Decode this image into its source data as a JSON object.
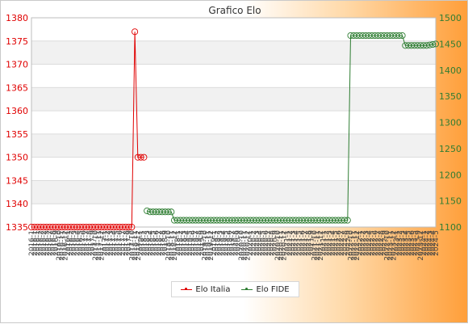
{
  "chart_data": {
    "type": "line",
    "title": "Grafico Elo",
    "left_axis": {
      "ticks": [
        1335,
        1340,
        1345,
        1350,
        1355,
        1360,
        1365,
        1370,
        1375,
        1380
      ],
      "range": [
        1335,
        1380
      ],
      "color": "#e00000"
    },
    "right_axis": {
      "ticks": [
        1100,
        1150,
        1200,
        1250,
        1300,
        1350,
        1400,
        1450,
        1500
      ],
      "range": [
        1100,
        1500
      ],
      "color": "#2e7d32"
    },
    "grid": "horizontal bands",
    "legend_placement": "bottom-center",
    "series": [
      {
        "name": "Elo Italia",
        "axis": "left",
        "color": "#e00000",
        "points": [
          {
            "i": 0,
            "v": 1335
          },
          {
            "i": 1,
            "v": 1335
          },
          {
            "i": 2,
            "v": 1335
          },
          {
            "i": 3,
            "v": 1335
          },
          {
            "i": 4,
            "v": 1335
          },
          {
            "i": 5,
            "v": 1335
          },
          {
            "i": 6,
            "v": 1335
          },
          {
            "i": 7,
            "v": 1335
          },
          {
            "i": 8,
            "v": 1335
          },
          {
            "i": 9,
            "v": 1335
          },
          {
            "i": 10,
            "v": 1335
          },
          {
            "i": 11,
            "v": 1335
          },
          {
            "i": 12,
            "v": 1335
          },
          {
            "i": 13,
            "v": 1335
          },
          {
            "i": 14,
            "v": 1335
          },
          {
            "i": 15,
            "v": 1335
          },
          {
            "i": 16,
            "v": 1335
          },
          {
            "i": 17,
            "v": 1335
          },
          {
            "i": 18,
            "v": 1335
          },
          {
            "i": 19,
            "v": 1335
          },
          {
            "i": 20,
            "v": 1335
          },
          {
            "i": 21,
            "v": 1335
          },
          {
            "i": 22,
            "v": 1335
          },
          {
            "i": 23,
            "v": 1335
          },
          {
            "i": 24,
            "v": 1335
          },
          {
            "i": 25,
            "v": 1335
          },
          {
            "i": 26,
            "v": 1335
          },
          {
            "i": 27,
            "v": 1335
          },
          {
            "i": 28,
            "v": 1335
          },
          {
            "i": 29,
            "v": 1335
          },
          {
            "i": 30,
            "v": 1335
          },
          {
            "i": 31,
            "v": 1335
          },
          {
            "i": 32,
            "v": 1335
          },
          {
            "i": 33,
            "v": 1335
          },
          {
            "i": 34,
            "v": 1377
          },
          {
            "i": 35,
            "v": 1350
          },
          {
            "i": 36,
            "v": 1350
          },
          {
            "i": 37,
            "v": 1350
          }
        ]
      },
      {
        "name": "Elo FIDE",
        "axis": "right",
        "color": "#2e7d32",
        "points": [
          {
            "i": 38,
            "v": 1131
          },
          {
            "i": 39,
            "v": 1129
          },
          {
            "i": 40,
            "v": 1129
          },
          {
            "i": 41,
            "v": 1129
          },
          {
            "i": 42,
            "v": 1129
          },
          {
            "i": 43,
            "v": 1129
          },
          {
            "i": 44,
            "v": 1129
          },
          {
            "i": 45,
            "v": 1129
          },
          {
            "i": 46,
            "v": 1129
          },
          {
            "i": 47,
            "v": 1113
          },
          {
            "i": 48,
            "v": 1113
          },
          {
            "i": 49,
            "v": 1113
          },
          {
            "i": 50,
            "v": 1113
          },
          {
            "i": 51,
            "v": 1113
          },
          {
            "i": 52,
            "v": 1113
          },
          {
            "i": 53,
            "v": 1113
          },
          {
            "i": 54,
            "v": 1113
          },
          {
            "i": 55,
            "v": 1113
          },
          {
            "i": 56,
            "v": 1113
          },
          {
            "i": 57,
            "v": 1113
          },
          {
            "i": 58,
            "v": 1113
          },
          {
            "i": 59,
            "v": 1113
          },
          {
            "i": 60,
            "v": 1113
          },
          {
            "i": 61,
            "v": 1113
          },
          {
            "i": 62,
            "v": 1113
          },
          {
            "i": 63,
            "v": 1113
          },
          {
            "i": 64,
            "v": 1113
          },
          {
            "i": 65,
            "v": 1113
          },
          {
            "i": 66,
            "v": 1113
          },
          {
            "i": 67,
            "v": 1113
          },
          {
            "i": 68,
            "v": 1113
          },
          {
            "i": 69,
            "v": 1113
          },
          {
            "i": 70,
            "v": 1113
          },
          {
            "i": 71,
            "v": 1113
          },
          {
            "i": 72,
            "v": 1113
          },
          {
            "i": 73,
            "v": 1113
          },
          {
            "i": 74,
            "v": 1113
          },
          {
            "i": 75,
            "v": 1113
          },
          {
            "i": 76,
            "v": 1113
          },
          {
            "i": 77,
            "v": 1113
          },
          {
            "i": 78,
            "v": 1113
          },
          {
            "i": 79,
            "v": 1113
          },
          {
            "i": 80,
            "v": 1113
          },
          {
            "i": 81,
            "v": 1113
          },
          {
            "i": 82,
            "v": 1113
          },
          {
            "i": 83,
            "v": 1113
          },
          {
            "i": 84,
            "v": 1113
          },
          {
            "i": 85,
            "v": 1113
          },
          {
            "i": 86,
            "v": 1113
          },
          {
            "i": 87,
            "v": 1113
          },
          {
            "i": 88,
            "v": 1113
          },
          {
            "i": 89,
            "v": 1113
          },
          {
            "i": 90,
            "v": 1113
          },
          {
            "i": 91,
            "v": 1113
          },
          {
            "i": 92,
            "v": 1113
          },
          {
            "i": 93,
            "v": 1113
          },
          {
            "i": 94,
            "v": 1113
          },
          {
            "i": 95,
            "v": 1113
          },
          {
            "i": 96,
            "v": 1113
          },
          {
            "i": 97,
            "v": 1113
          },
          {
            "i": 98,
            "v": 1113
          },
          {
            "i": 99,
            "v": 1113
          },
          {
            "i": 100,
            "v": 1113
          },
          {
            "i": 101,
            "v": 1113
          },
          {
            "i": 102,
            "v": 1113
          },
          {
            "i": 103,
            "v": 1113
          },
          {
            "i": 104,
            "v": 1113
          },
          {
            "i": 105,
            "v": 1466
          },
          {
            "i": 106,
            "v": 1466
          },
          {
            "i": 107,
            "v": 1466
          },
          {
            "i": 108,
            "v": 1466
          },
          {
            "i": 109,
            "v": 1466
          },
          {
            "i": 110,
            "v": 1466
          },
          {
            "i": 111,
            "v": 1466
          },
          {
            "i": 112,
            "v": 1466
          },
          {
            "i": 113,
            "v": 1466
          },
          {
            "i": 114,
            "v": 1466
          },
          {
            "i": 115,
            "v": 1466
          },
          {
            "i": 116,
            "v": 1466
          },
          {
            "i": 117,
            "v": 1466
          },
          {
            "i": 118,
            "v": 1466
          },
          {
            "i": 119,
            "v": 1466
          },
          {
            "i": 120,
            "v": 1466
          },
          {
            "i": 121,
            "v": 1466
          },
          {
            "i": 122,
            "v": 1466
          },
          {
            "i": 123,
            "v": 1447
          },
          {
            "i": 124,
            "v": 1447
          },
          {
            "i": 125,
            "v": 1447
          },
          {
            "i": 126,
            "v": 1447
          },
          {
            "i": 127,
            "v": 1447
          },
          {
            "i": 128,
            "v": 1447
          },
          {
            "i": 129,
            "v": 1447
          },
          {
            "i": 130,
            "v": 1447
          },
          {
            "i": 131,
            "v": 1448
          },
          {
            "i": 132,
            "v": 1449
          },
          {
            "i": 133,
            "v": 1450
          }
        ]
      }
    ],
    "x_count": 134,
    "x_labels_first": [
      "2016-1",
      "2016-1",
      "2016-1",
      "2016-2",
      "2016-2",
      "2016-3"
    ],
    "x_labels_last": [
      "2023-5",
      "2023-9",
      "2023-12",
      "2024-1",
      "2024-2",
      "2024-3",
      "2024-4",
      "2024-5"
    ]
  }
}
